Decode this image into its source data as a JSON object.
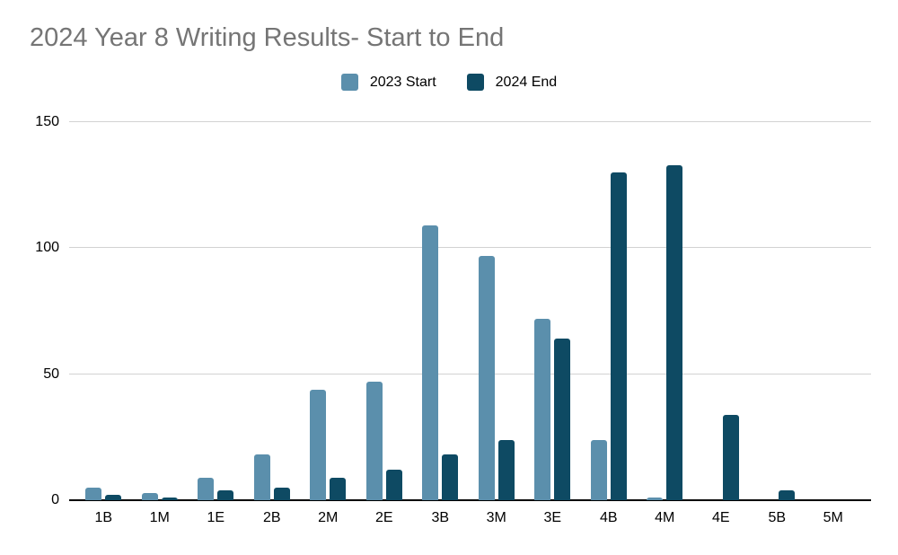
{
  "title": "2024 Year 8 Writing Results- Start to End",
  "colors": {
    "series_2023_start": "#5b8fac",
    "series_2024_end": "#0e4a63",
    "title_text": "#757575",
    "gridline": "#d2d2d2",
    "axis_line": "#000000",
    "label_text": "#000000",
    "background": "#ffffff"
  },
  "chart_data": {
    "type": "bar",
    "title": "2024 Year 8 Writing Results- Start to End",
    "categories": [
      "1B",
      "1M",
      "1E",
      "2B",
      "2M",
      "2E",
      "3B",
      "3M",
      "3E",
      "4B",
      "4M",
      "4E",
      "5B",
      "5M"
    ],
    "series": [
      {
        "name": "2023 Start",
        "color": "#5b8fac",
        "values": [
          5,
          3,
          9,
          18,
          44,
          47,
          109,
          97,
          72,
          24,
          1,
          0,
          0,
          0
        ]
      },
      {
        "name": "2024 End",
        "color": "#0e4a63",
        "values": [
          2,
          1,
          4,
          5,
          9,
          12,
          18,
          24,
          64,
          130,
          133,
          34,
          4,
          0
        ]
      }
    ],
    "xlabel": "",
    "ylabel": "",
    "ylim": [
      0,
      150
    ],
    "yticks": [
      0,
      50,
      100,
      150
    ],
    "grid": true,
    "legend_position": "top-center"
  }
}
